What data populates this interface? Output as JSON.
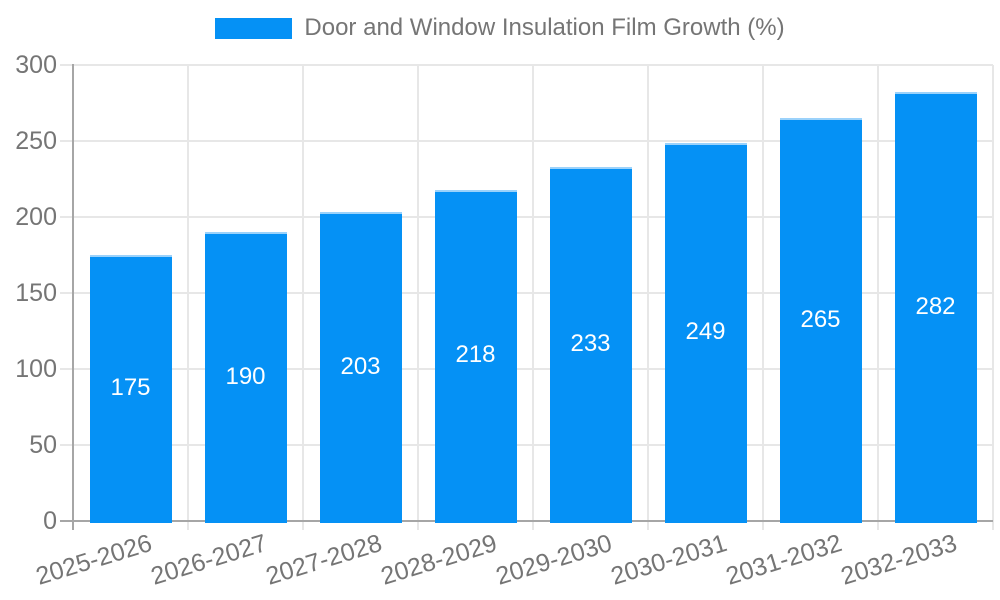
{
  "legend": {
    "label": "Door and Window Insulation Film Growth (%)"
  },
  "chart_data": {
    "type": "bar",
    "title": "Door and Window Insulation Film Growth (%)",
    "categories": [
      "2025-2026",
      "2026-2027",
      "2027-2028",
      "2028-2029",
      "2029-2030",
      "2030-2031",
      "2031-2032",
      "2032-2033"
    ],
    "values": [
      175,
      190,
      203,
      218,
      233,
      249,
      265,
      282
    ],
    "value_labels": [
      "175",
      "190",
      "203",
      "218",
      "233",
      "249",
      "265",
      "282"
    ],
    "xlabel": "",
    "ylabel": "",
    "ylim": [
      0,
      300
    ],
    "yticks": [
      0,
      50,
      100,
      150,
      200,
      250,
      300
    ],
    "grid": true,
    "legend_position": "top-center",
    "x_tick_rotation_deg": -17,
    "colors": {
      "bar": "#0591f5",
      "bar_top_edge": "#9bd2fb",
      "value_label": "#ffffff",
      "axis": "#a6a6a6",
      "grid": "#e7e7e7",
      "tick_label": "#757575",
      "legend_text": "#757575",
      "background": "#ffffff"
    }
  }
}
